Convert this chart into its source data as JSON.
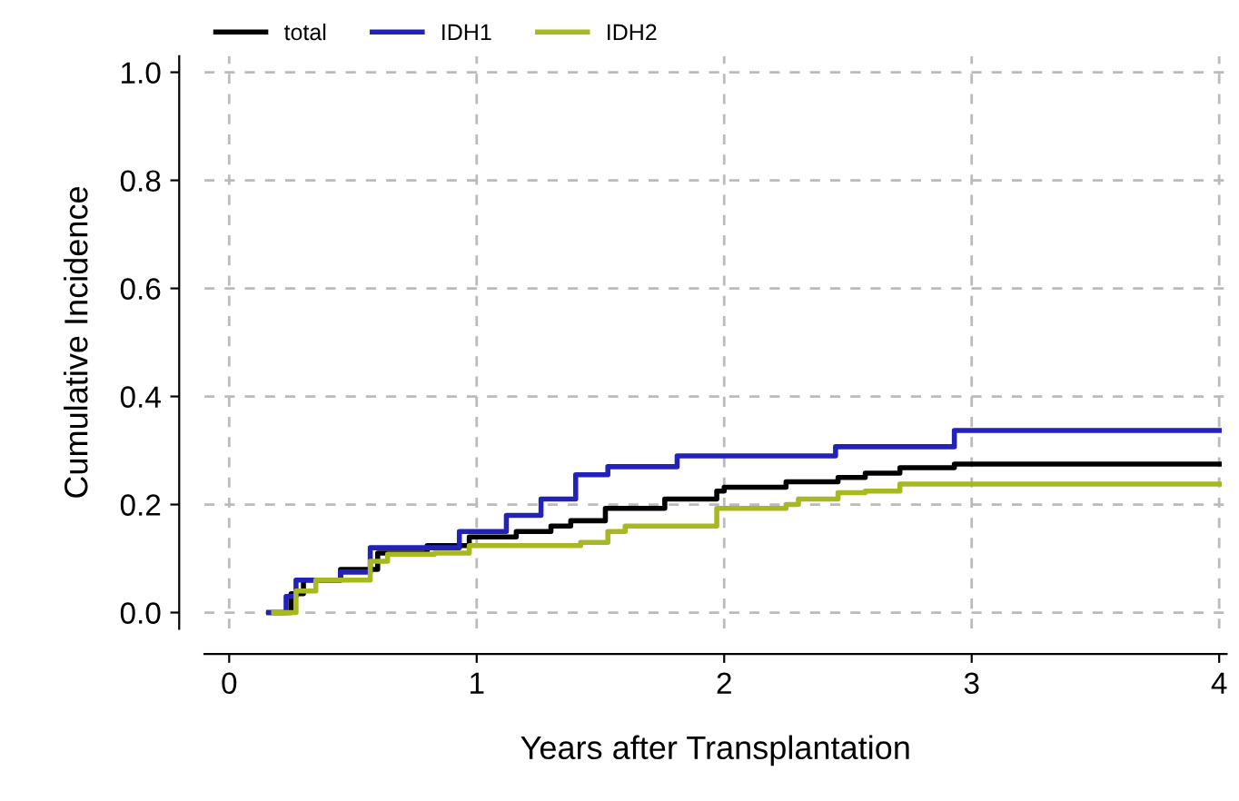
{
  "chart_data": {
    "type": "step",
    "xlabel": "Years after Transplantation",
    "ylabel": "Cumulative Incidence",
    "xlim": [
      -0.1,
      4.03
    ],
    "xticks": [
      0,
      1,
      2,
      3,
      4
    ],
    "ylim": [
      -0.03,
      1.03
    ],
    "yticks": [
      {
        "value": 0,
        "label": "0.0"
      },
      0.2,
      0.4,
      0.6,
      0.8,
      {
        "value": 1,
        "label": "1.0"
      }
    ],
    "grid": true,
    "legend": "top left",
    "line_style": "solid",
    "marker": "none",
    "series": [
      {
        "name": "total",
        "color": "#000000",
        "x": [
          0.16,
          0.25,
          0.3,
          0.45,
          0.6,
          0.8,
          0.97,
          1.16,
          1.3,
          1.38,
          1.52,
          1.76,
          1.97,
          2.0,
          2.25,
          2.46,
          2.57,
          2.71,
          2.93,
          4.0
        ],
        "values": [
          0,
          0.035,
          0.06,
          0.08,
          0.11,
          0.124,
          0.14,
          0.15,
          0.16,
          0.17,
          0.193,
          0.21,
          0.225,
          0.232,
          0.242,
          0.25,
          0.258,
          0.268,
          0.275,
          0.275
        ]
      },
      {
        "name": "IDH1",
        "color": "#2222bb",
        "x": [
          0.16,
          0.23,
          0.27,
          0.45,
          0.57,
          0.93,
          1.12,
          1.26,
          1.4,
          1.53,
          1.81,
          2.45,
          2.93,
          4.0
        ],
        "values": [
          0,
          0.03,
          0.06,
          0.075,
          0.12,
          0.15,
          0.18,
          0.21,
          0.255,
          0.27,
          0.29,
          0.307,
          0.337,
          0.337
        ]
      },
      {
        "name": "IDH2",
        "color": "#a8b820",
        "x": [
          0.18,
          0.27,
          0.35,
          0.57,
          0.64,
          0.83,
          0.97,
          1.42,
          1.53,
          1.6,
          1.97,
          2.25,
          2.3,
          2.46,
          2.57,
          2.71,
          4.0
        ],
        "values": [
          0,
          0.04,
          0.06,
          0.095,
          0.108,
          0.11,
          0.124,
          0.13,
          0.15,
          0.16,
          0.193,
          0.2,
          0.21,
          0.222,
          0.225,
          0.238,
          0.238
        ]
      }
    ]
  }
}
